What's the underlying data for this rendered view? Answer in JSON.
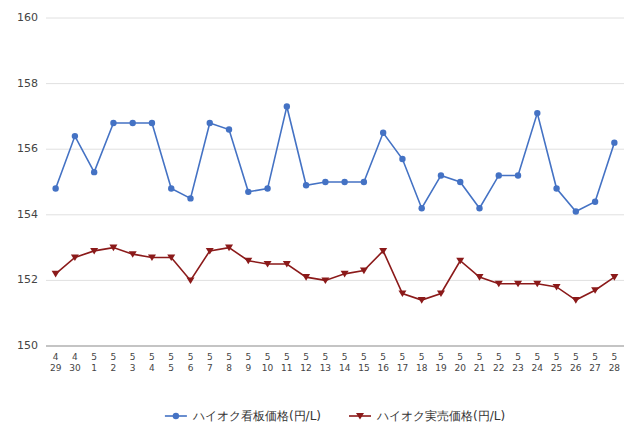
{
  "chart_data": {
    "type": "line",
    "categories": [
      "4\n29",
      "4\n30",
      "5\n1",
      "5\n2",
      "5\n3",
      "5\n4",
      "5\n5",
      "5\n6",
      "5\n7",
      "5\n8",
      "5\n9",
      "5\n10",
      "5\n11",
      "5\n12",
      "5\n13",
      "5\n14",
      "5\n15",
      "5\n16",
      "5\n17",
      "5\n18",
      "5\n19",
      "5\n20",
      "5\n21",
      "5\n22",
      "5\n23",
      "5\n24",
      "5\n25",
      "5\n26",
      "5\n27",
      "5\n28"
    ],
    "series": [
      {
        "name": "ハイオク看板価格(円/L)",
        "color": "#4472c4",
        "marker": "circle",
        "values": [
          154.8,
          156.4,
          155.3,
          156.8,
          156.8,
          156.8,
          154.8,
          154.5,
          156.8,
          156.6,
          154.7,
          154.8,
          157.3,
          154.9,
          155.0,
          155.0,
          155.0,
          156.5,
          155.7,
          154.2,
          155.2,
          155.0,
          154.2,
          155.2,
          155.2,
          157.1,
          154.8,
          154.1,
          154.4,
          156.2
        ]
      },
      {
        "name": "ハイオク実売価格(円/L)",
        "color": "#8b1a1a",
        "marker": "triangle-down",
        "values": [
          152.2,
          152.7,
          152.9,
          153.0,
          152.8,
          152.7,
          152.7,
          152.0,
          152.9,
          153.0,
          152.6,
          152.5,
          152.5,
          152.1,
          152.0,
          152.2,
          152.3,
          152.9,
          151.6,
          151.4,
          151.6,
          152.6,
          152.1,
          151.9,
          151.9,
          151.9,
          151.8,
          151.4,
          151.7,
          152.1
        ]
      }
    ],
    "ylim": [
      150,
      160
    ],
    "yticks": [
      150,
      152,
      154,
      156,
      158,
      160
    ],
    "grid": true,
    "legend": "bottom"
  }
}
